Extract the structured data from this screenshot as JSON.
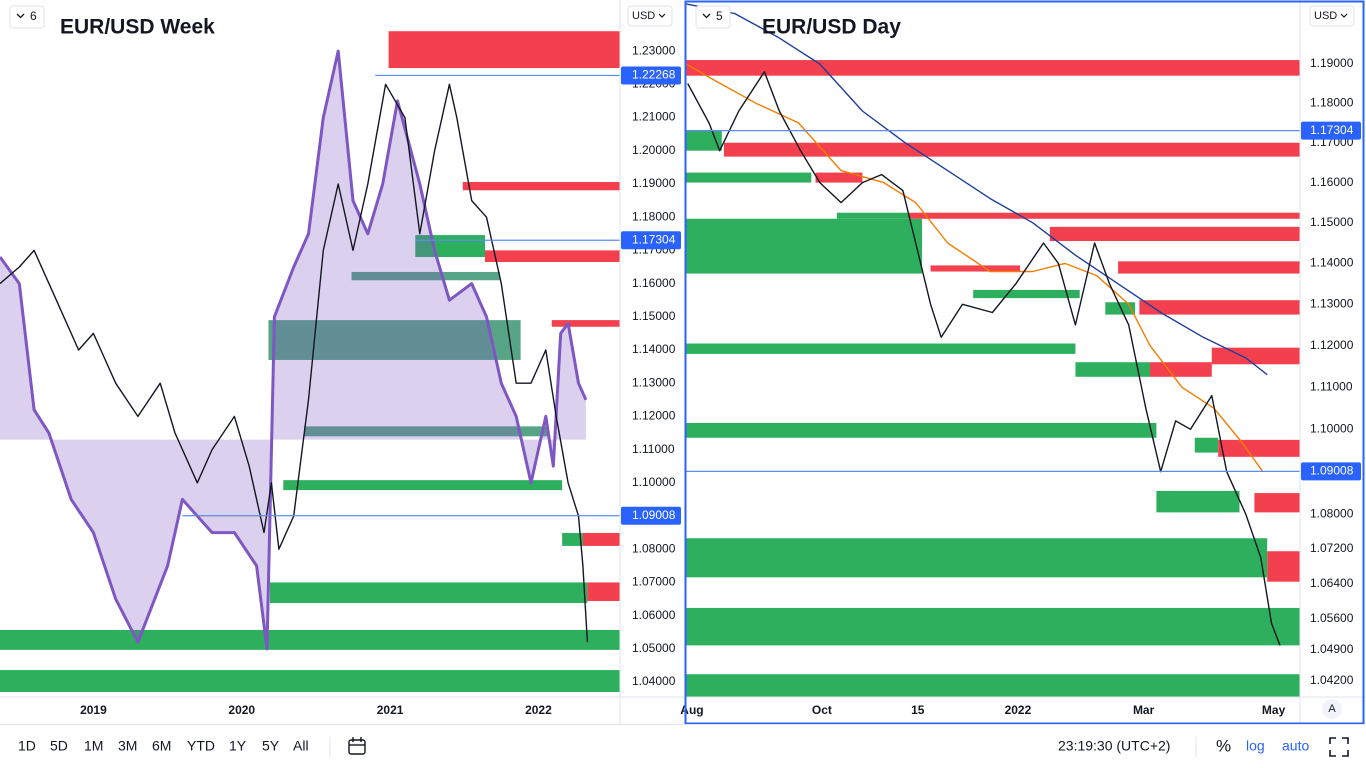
{
  "toolbar": {
    "ranges": [
      "1D",
      "5D",
      "1M",
      "3M",
      "6M",
      "YTD",
      "1Y",
      "5Y",
      "All"
    ],
    "clock": "23:19:30 (UTC+2)",
    "percent": "%",
    "log": "log",
    "auto": "auto",
    "scale_button": "A"
  },
  "chart_data": [
    {
      "type": "line",
      "title": "EUR/USD Week",
      "interval": "6",
      "currency": "USD",
      "log_scale": false,
      "xlim": [
        2018.37,
        2022.55
      ],
      "xticks": [
        2019,
        2020,
        2021,
        2022
      ],
      "ylim": [
        1.0355,
        1.2454
      ],
      "yticks": [
        {
          "value": 1.23,
          "label": "1.23000"
        },
        {
          "value": 1.22,
          "label": "1.22000"
        },
        {
          "value": 1.21,
          "label": "1.21000"
        },
        {
          "value": 1.2,
          "label": "1.20000"
        },
        {
          "value": 1.19,
          "label": "1.19000"
        },
        {
          "value": 1.18,
          "label": "1.18000"
        },
        {
          "value": 1.17,
          "label": "1.17000"
        },
        {
          "value": 1.16,
          "label": "1.16000"
        },
        {
          "value": 1.15,
          "label": "1.15000"
        },
        {
          "value": 1.14,
          "label": "1.14000"
        },
        {
          "value": 1.13,
          "label": "1.13000"
        },
        {
          "value": 1.12,
          "label": "1.12000"
        },
        {
          "value": 1.11,
          "label": "1.11000"
        },
        {
          "value": 1.1,
          "label": "1.10000"
        },
        {
          "value": 1.08,
          "label": "1.08000"
        },
        {
          "value": 1.07,
          "label": "1.07000"
        },
        {
          "value": 1.06,
          "label": "1.06000"
        },
        {
          "value": 1.05,
          "label": "1.05000"
        },
        {
          "value": 1.04,
          "label": "1.04000"
        }
      ],
      "zones": [
        {
          "color": "#f23645",
          "x_from": 2020.99,
          "y": [
            1.2249,
            1.236
          ]
        },
        {
          "color": "#f23645",
          "x_from": 2021.49,
          "y": [
            1.1881,
            1.1906
          ]
        },
        {
          "color": "#22ab55",
          "x_from": 2021.17,
          "x_to": 2021.64,
          "y": [
            1.168,
            1.1746
          ]
        },
        {
          "color": "#f23645",
          "x_from": 2021.64,
          "y": [
            1.1665,
            1.17
          ]
        },
        {
          "color": "#4f9f7f",
          "x_from": 2020.74,
          "x_to": 2021.74,
          "y": [
            1.161,
            1.1635
          ]
        },
        {
          "color": "#4f9f7f",
          "x_from": 2020.18,
          "x_to": 2021.88,
          "y": [
            1.137,
            1.149
          ]
        },
        {
          "color": "#f23645",
          "x_from": 2022.09,
          "y": [
            1.147,
            1.149
          ]
        },
        {
          "color": "#4f9f7f",
          "x_from": 2020.42,
          "x_to": 2022.06,
          "y": [
            1.114,
            1.117
          ]
        },
        {
          "color": "#22ab55",
          "x_from": 2020.28,
          "x_to": 2022.16,
          "y": [
            1.0978,
            1.1008
          ]
        },
        {
          "color": "#22ab55",
          "x_from": 2022.16,
          "x_to": 2022.3,
          "y": [
            1.081,
            1.0849
          ]
        },
        {
          "color": "#f23645",
          "x_from": 2022.3,
          "y": [
            1.081,
            1.0849
          ]
        },
        {
          "color": "#22ab55",
          "x_from": 2020.19,
          "x_to": 2022.33,
          "y": [
            1.0638,
            1.07
          ]
        },
        {
          "color": "#f23645",
          "x_from": 2022.33,
          "y": [
            1.0644,
            1.07
          ]
        },
        {
          "color": "#22ab55",
          "x_from": 2018.37,
          "y": [
            1.0497,
            1.0557
          ]
        },
        {
          "color": "#22ab55",
          "x_from": 2018.37,
          "y": [
            1.037,
            1.0436
          ]
        }
      ],
      "series": [
        {
          "color": "#7e57c2",
          "baseline": 1.113,
          "x": [
            2018.37,
            2018.5,
            2018.6,
            2018.7,
            2018.85,
            2019.0,
            2019.15,
            2019.3,
            2019.5,
            2019.6,
            2019.8,
            2019.95,
            2020.1,
            2020.17,
            2020.22,
            2020.35,
            2020.45,
            2020.55,
            2020.65,
            2020.75,
            2020.85,
            2020.95,
            2021.05,
            2021.2,
            2021.3,
            2021.4,
            2021.55,
            2021.65,
            2021.75,
            2021.85,
            2021.95,
            2022.05,
            2022.1,
            2022.15,
            2022.2,
            2022.27,
            2022.32
          ],
          "values": [
            1.168,
            1.16,
            1.122,
            1.115,
            1.095,
            1.085,
            1.065,
            1.052,
            1.075,
            1.095,
            1.085,
            1.085,
            1.075,
            1.05,
            1.15,
            1.165,
            1.175,
            1.21,
            1.23,
            1.185,
            1.175,
            1.19,
            1.215,
            1.19,
            1.17,
            1.155,
            1.16,
            1.15,
            1.13,
            1.12,
            1.1,
            1.12,
            1.105,
            1.145,
            1.148,
            1.13,
            1.125
          ]
        },
        {
          "color": "#131722",
          "x": [
            2018.37,
            2018.5,
            2018.6,
            2018.75,
            2018.9,
            2019.0,
            2019.15,
            2019.3,
            2019.45,
            2019.55,
            2019.7,
            2019.8,
            2019.95,
            2020.05,
            2020.15,
            2020.2,
            2020.25,
            2020.35,
            2020.45,
            2020.55,
            2020.65,
            2020.75,
            2020.85,
            2020.97,
            2021.1,
            2021.2,
            2021.3,
            2021.4,
            2021.45,
            2021.55,
            2021.65,
            2021.75,
            2021.85,
            2021.95,
            2022.05,
            2022.12,
            2022.2,
            2022.27,
            2022.3,
            2022.33
          ],
          "values": [
            1.16,
            1.165,
            1.17,
            1.155,
            1.14,
            1.145,
            1.13,
            1.12,
            1.13,
            1.115,
            1.1,
            1.11,
            1.12,
            1.105,
            1.085,
            1.1,
            1.08,
            1.09,
            1.125,
            1.17,
            1.19,
            1.17,
            1.19,
            1.22,
            1.21,
            1.175,
            1.2,
            1.22,
            1.21,
            1.185,
            1.18,
            1.16,
            1.13,
            1.13,
            1.14,
            1.12,
            1.1,
            1.09,
            1.075,
            1.052
          ]
        }
      ],
      "price_lines": [
        {
          "value": 1.22268,
          "label": "1.22268",
          "x_from": 2020.9
        },
        {
          "value": 1.17304,
          "label": "1.17304",
          "x_from": 2021.17
        },
        {
          "value": 1.09008,
          "label": "1.09008",
          "x_from": 2019.6
        }
      ]
    },
    {
      "type": "line",
      "title": "EUR/USD Day",
      "interval": "5",
      "currency": "USD",
      "log_scale": true,
      "xlim": [
        -2.8,
        285.4
      ],
      "xticks": [
        {
          "value": 0,
          "label": "Aug"
        },
        {
          "value": 61,
          "label": "Oct"
        },
        {
          "value": 106,
          "label": "15"
        },
        {
          "value": 153,
          "label": "2022"
        },
        {
          "value": 212,
          "label": "Mar"
        },
        {
          "value": 273,
          "label": "May"
        }
      ],
      "ylim": [
        1.0384,
        1.2065
      ],
      "yticks": [
        {
          "value": 1.19,
          "label": "1.19000"
        },
        {
          "value": 1.18,
          "label": "1.18000"
        },
        {
          "value": 1.17,
          "label": "1.17000"
        },
        {
          "value": 1.16,
          "label": "1.16000"
        },
        {
          "value": 1.15,
          "label": "1.15000"
        },
        {
          "value": 1.14,
          "label": "1.14000"
        },
        {
          "value": 1.13,
          "label": "1.13000"
        },
        {
          "value": 1.12,
          "label": "1.12000"
        },
        {
          "value": 1.11,
          "label": "1.11000"
        },
        {
          "value": 1.1,
          "label": "1.10000"
        },
        {
          "value": 1.08,
          "label": "1.08000"
        },
        {
          "value": 1.072,
          "label": "1.07200"
        },
        {
          "value": 1.064,
          "label": "1.06400"
        },
        {
          "value": 1.056,
          "label": "1.05600"
        },
        {
          "value": 1.049,
          "label": "1.04900"
        },
        {
          "value": 1.042,
          "label": "1.04200"
        }
      ],
      "zones": [
        {
          "color": "#f23645",
          "x_from": -2.8,
          "y": [
            1.187,
            1.191
          ]
        },
        {
          "color": "#22ab55",
          "x_from": -2.8,
          "x_to": 14,
          "y": [
            1.168,
            1.173
          ]
        },
        {
          "color": "#f23645",
          "x_from": 15,
          "y": [
            1.1665,
            1.17
          ]
        },
        {
          "color": "#22ab55",
          "x_from": -2.8,
          "x_to": 56,
          "y": [
            1.16,
            1.1625
          ]
        },
        {
          "color": "#f23645",
          "x_from": 58,
          "x_to": 80,
          "y": [
            1.16,
            1.1625
          ]
        },
        {
          "color": "#22ab55",
          "x_from": 68,
          "x_to": 102,
          "y": [
            1.151,
            1.1525
          ]
        },
        {
          "color": "#f23645",
          "x_from": 102,
          "y": [
            1.151,
            1.1525
          ]
        },
        {
          "color": "#22ab55",
          "x_from": -2.8,
          "x_to": 108,
          "y": [
            1.1375,
            1.151
          ]
        },
        {
          "color": "#f23645",
          "x_from": 112,
          "x_to": 154,
          "y": [
            1.138,
            1.1395
          ]
        },
        {
          "color": "#f23645",
          "x_from": 168,
          "y": [
            1.1455,
            1.149
          ]
        },
        {
          "color": "#f23645",
          "x_from": 200,
          "y": [
            1.1375,
            1.1405
          ]
        },
        {
          "color": "#22ab55",
          "x_from": 194,
          "x_to": 208,
          "y": [
            1.1275,
            1.1305
          ]
        },
        {
          "color": "#f23645",
          "x_from": 210,
          "y": [
            1.1275,
            1.131
          ]
        },
        {
          "color": "#22ab55",
          "x_from": 132,
          "x_to": 182,
          "y": [
            1.1315,
            1.1335
          ]
        },
        {
          "color": "#22ab55",
          "x_from": -2.8,
          "x_to": 180,
          "y": [
            1.118,
            1.1205
          ]
        },
        {
          "color": "#22ab55",
          "x_from": 180,
          "x_to": 215,
          "y": [
            1.1125,
            1.116
          ]
        },
        {
          "color": "#f23645",
          "x_from": 215,
          "x_to": 244,
          "y": [
            1.1125,
            1.116
          ]
        },
        {
          "color": "#f23645",
          "x_from": 244,
          "y": [
            1.1155,
            1.1195
          ]
        },
        {
          "color": "#22ab55",
          "x_from": -2.8,
          "x_to": 218,
          "y": [
            1.098,
            1.1015
          ]
        },
        {
          "color": "#22ab55",
          "x_from": 236,
          "x_to": 247,
          "y": [
            1.0945,
            1.098
          ]
        },
        {
          "color": "#f23645",
          "x_from": 247,
          "y": [
            1.0935,
            1.0975
          ]
        },
        {
          "color": "#22ab55",
          "x_from": 218,
          "x_to": 257,
          "y": [
            1.0805,
            1.0855
          ]
        },
        {
          "color": "#f23645",
          "x_from": 264,
          "y": [
            1.0805,
            1.085
          ]
        },
        {
          "color": "#22ab55",
          "x_from": -2.8,
          "x_to": 270,
          "y": [
            1.0655,
            1.0745
          ]
        },
        {
          "color": "#f23645",
          "x_from": 270,
          "y": [
            1.0645,
            1.0715
          ]
        },
        {
          "color": "#22ab55",
          "x_from": -2.8,
          "y": [
            1.05,
            1.0585
          ]
        },
        {
          "color": "#22ab55",
          "x_from": -2.8,
          "y": [
            1.0385,
            1.0435
          ]
        }
      ],
      "series": [
        {
          "color": "#1e3f9c",
          "x": [
            -2.8,
            20,
            40,
            60,
            80,
            100,
            120,
            140,
            160,
            180,
            200,
            220,
            240,
            260,
            270
          ],
          "values": [
            1.2055,
            1.203,
            1.197,
            1.19,
            1.178,
            1.17,
            1.163,
            1.156,
            1.15,
            1.142,
            1.135,
            1.128,
            1.122,
            1.117,
            1.113
          ]
        },
        {
          "color": "#f57c00",
          "x": [
            -2.8,
            10,
            30,
            50,
            70,
            90,
            105,
            120,
            140,
            160,
            175,
            190,
            205,
            215,
            230,
            245,
            258,
            268
          ],
          "values": [
            1.19,
            1.186,
            1.18,
            1.175,
            1.163,
            1.16,
            1.155,
            1.145,
            1.138,
            1.138,
            1.14,
            1.137,
            1.13,
            1.12,
            1.11,
            1.105,
            1.097,
            1.09
          ]
        },
        {
          "color": "#131722",
          "x": [
            -2,
            8,
            13,
            22,
            34,
            41,
            51,
            60,
            70,
            80,
            89,
            99,
            105,
            112,
            117,
            127,
            141,
            152,
            165,
            172,
            180,
            189,
            196,
            205,
            213,
            220,
            227,
            234,
            244,
            251,
            260,
            267,
            272,
            276
          ],
          "values": [
            1.185,
            1.175,
            1.168,
            1.178,
            1.188,
            1.178,
            1.168,
            1.16,
            1.155,
            1.16,
            1.162,
            1.158,
            1.145,
            1.13,
            1.122,
            1.13,
            1.128,
            1.135,
            1.145,
            1.14,
            1.125,
            1.145,
            1.135,
            1.125,
            1.105,
            1.09,
            1.102,
            1.1,
            1.108,
            1.09,
            1.08,
            1.07,
            1.055,
            1.05
          ]
        }
      ],
      "price_lines": [
        {
          "value": 1.17304,
          "label": "1.17304",
          "x_from": -2.8
        },
        {
          "value": 1.09008,
          "label": "1.09008",
          "x_from": -2.8
        }
      ]
    }
  ]
}
